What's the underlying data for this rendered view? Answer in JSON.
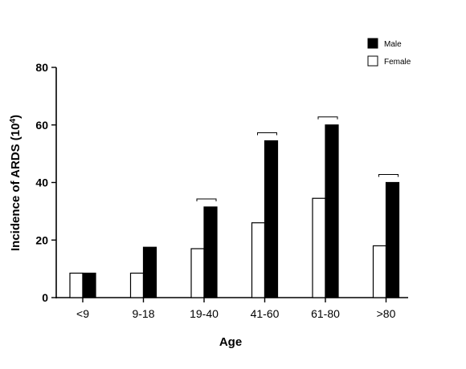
{
  "chart_data": {
    "type": "bar",
    "categories": [
      "<9",
      "9-18",
      "19-40",
      "41-60",
      "61-80",
      ">80"
    ],
    "series": [
      {
        "name": "Female",
        "values": [
          8.5,
          8.5,
          17,
          26,
          34.5,
          18
        ],
        "color": "#ffffff"
      },
      {
        "name": "Male",
        "values": [
          8.5,
          17.5,
          31.5,
          54.5,
          60,
          40
        ],
        "color": "#000000"
      }
    ],
    "ylim": [
      0,
      80
    ],
    "yticks": [
      0,
      20,
      40,
      60,
      80
    ],
    "xlabel": "Age",
    "ylabel_main": "Incidence of ARDS (10",
    "ylabel_sup": "4",
    "ylabel_end": ")",
    "legend": [
      "Male",
      "Female"
    ],
    "legend_position": "top-right",
    "grid": false,
    "significance_brackets": [
      "19-40",
      "41-60",
      "61-80",
      ">80"
    ]
  }
}
